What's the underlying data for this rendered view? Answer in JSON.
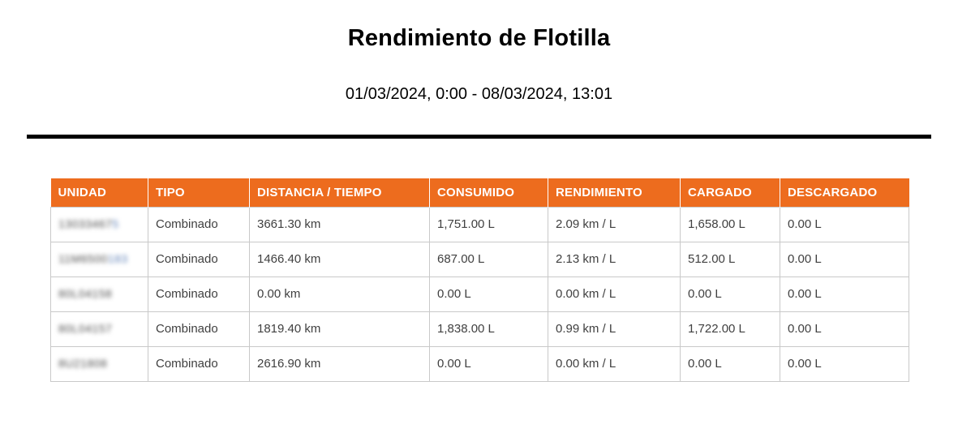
{
  "report": {
    "title": "Rendimiento de Flotilla",
    "date_range": "01/03/2024, 0:00 - 08/03/2024, 13:01"
  },
  "colors": {
    "header_bg": "#ED6C1E",
    "header_text": "#FFFFFF",
    "body_text": "#404040",
    "border": "#C9C9C9",
    "divider": "#000000"
  },
  "table": {
    "columns": [
      "UNIDAD",
      "TIPO",
      "DISTANCIA / TIEMPO",
      "CONSUMIDO",
      "RENDIMIENTO",
      "CARGADO",
      "DESCARGADO"
    ],
    "unit_ids_redacted": true,
    "rows": [
      {
        "unit_blur": "13033467",
        "unit_blur_accent": "5",
        "cells": [
          "Combinado",
          "3661.30 km",
          "1,751.00 L",
          "2.09 km / L",
          "1,658.00 L",
          "0.00 L"
        ]
      },
      {
        "unit_blur": "11M6500",
        "unit_blur_accent": "183",
        "cells": [
          "Combinado",
          "1466.40 km",
          "687.00 L",
          "2.13 km / L",
          "512.00 L",
          "0.00 L"
        ]
      },
      {
        "unit_blur": "80L04158",
        "unit_blur_accent": "",
        "cells": [
          "Combinado",
          "0.00 km",
          "0.00 L",
          "0.00 km / L",
          "0.00 L",
          "0.00 L"
        ]
      },
      {
        "unit_blur": "80L04157",
        "unit_blur_accent": "",
        "cells": [
          "Combinado",
          "1819.40 km",
          "1,838.00 L",
          "0.99 km / L",
          "1,722.00 L",
          "0.00 L"
        ]
      },
      {
        "unit_blur": "8U21808",
        "unit_blur_accent": "",
        "cells": [
          "Combinado",
          "2616.90 km",
          "0.00 L",
          "0.00 km / L",
          "0.00 L",
          "0.00 L"
        ]
      }
    ]
  }
}
